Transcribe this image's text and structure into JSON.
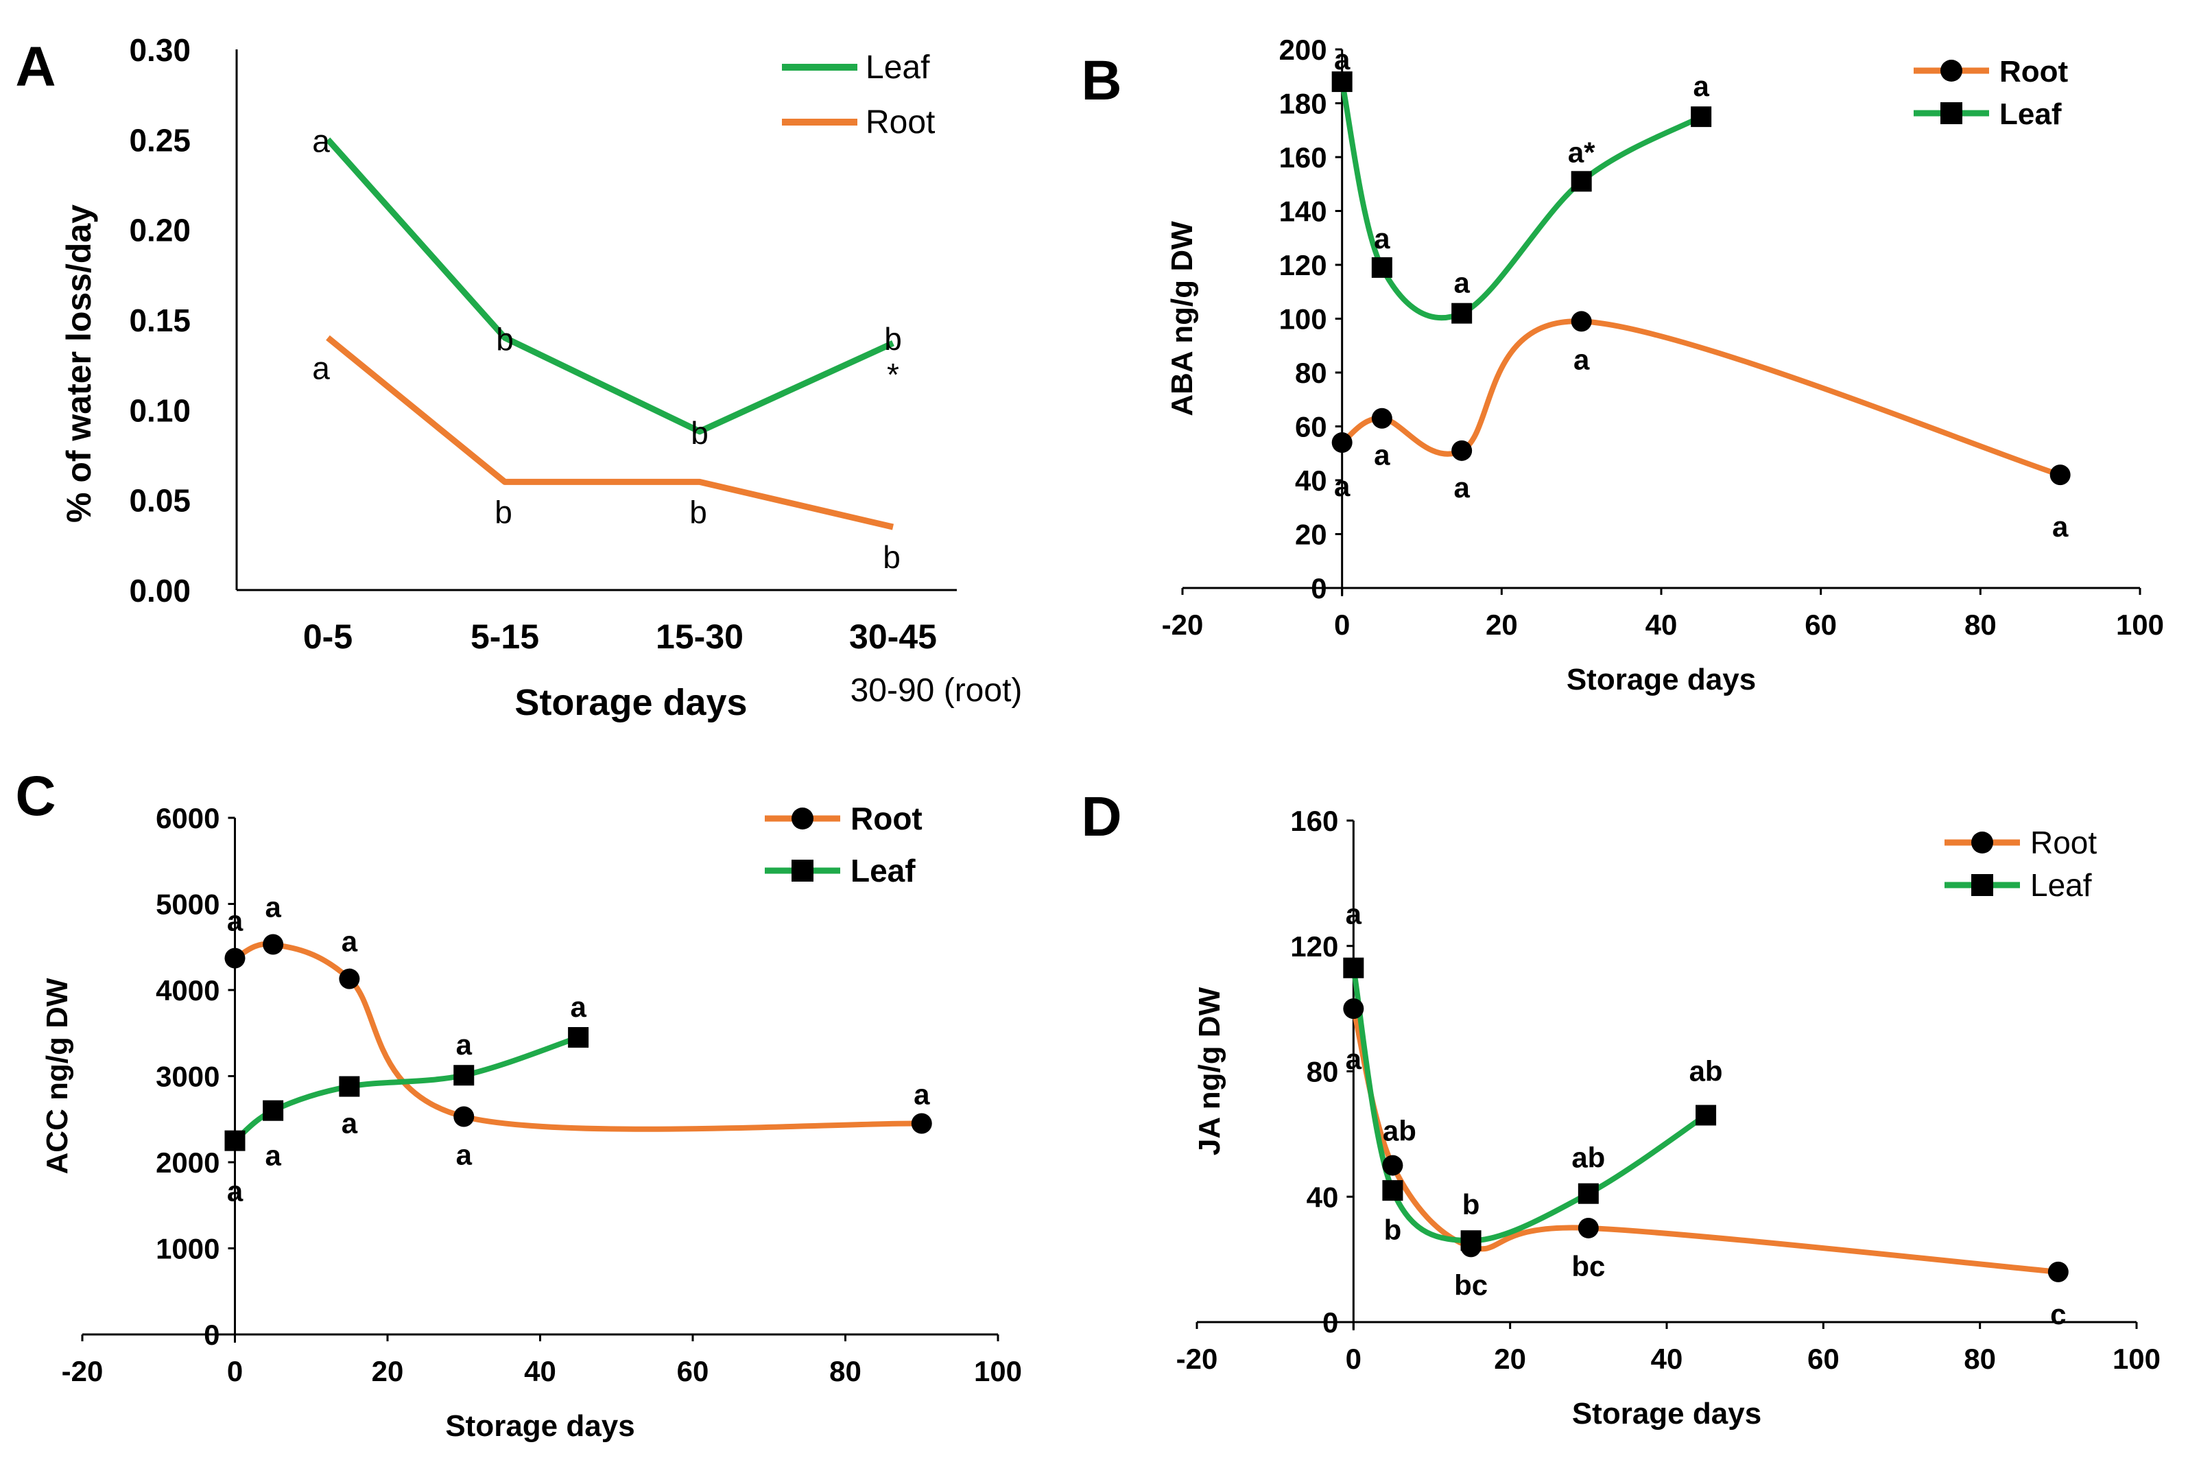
{
  "colors": {
    "root": "#ED7D31",
    "leaf": "#1FAA4A",
    "axis": "#000000",
    "text": "#000000"
  },
  "chart_data": [
    {
      "panel": "A",
      "type": "line",
      "categories": [
        "0-5",
        "5-15",
        "15-30",
        "30-45"
      ],
      "extra_xlabel": "30-90 (root)",
      "xlabel": "Storage days",
      "ylabel": "% of water loss/day",
      "ylim": [
        0,
        0.3
      ],
      "yticks": [
        "0.00",
        "0.05",
        "0.10",
        "0.15",
        "0.20",
        "0.25",
        "0.30"
      ],
      "legend": [
        "Leaf",
        "Root"
      ],
      "series": [
        {
          "name": "Leaf",
          "values": [
            0.25,
            0.14,
            0.088,
            0.137
          ],
          "letters": [
            "a",
            "b",
            "b",
            "b"
          ],
          "asterisk": "*"
        },
        {
          "name": "Root",
          "values": [
            0.14,
            0.06,
            0.06,
            0.035
          ],
          "letters": [
            "a",
            "b",
            "b",
            "b"
          ]
        }
      ]
    },
    {
      "panel": "B",
      "type": "scatter",
      "xlabel": "Storage days",
      "ylabel": "ABA ng/g DW",
      "xlim": [
        -20,
        100
      ],
      "ylim": [
        0,
        200
      ],
      "xticks": [
        "-20",
        "0",
        "20",
        "40",
        "60",
        "80",
        "100"
      ],
      "yticks": [
        "0",
        "20",
        "40",
        "60",
        "80",
        "100",
        "120",
        "140",
        "160",
        "180",
        "200"
      ],
      "legend": [
        "Root",
        "Leaf"
      ],
      "series": [
        {
          "name": "Root",
          "x": [
            0,
            5,
            15,
            30,
            90
          ],
          "y": [
            54,
            63,
            51,
            99,
            42
          ],
          "letters": [
            "a",
            "a",
            "a",
            "a",
            "a"
          ]
        },
        {
          "name": "Leaf",
          "x": [
            0,
            5,
            15,
            30,
            45
          ],
          "y": [
            188,
            119,
            102,
            151,
            175
          ],
          "letters": [
            "a",
            "a",
            "a",
            "a*",
            "a"
          ]
        }
      ]
    },
    {
      "panel": "C",
      "type": "scatter",
      "xlabel": "Storage days",
      "ylabel": "ACC ng/g DW",
      "xlim": [
        -20,
        100
      ],
      "ylim": [
        0,
        6000
      ],
      "xticks": [
        "-20",
        "0",
        "20",
        "40",
        "60",
        "80",
        "100"
      ],
      "yticks": [
        "0",
        "1000",
        "2000",
        "3000",
        "4000",
        "5000",
        "6000"
      ],
      "legend": [
        "Root",
        "Leaf"
      ],
      "series": [
        {
          "name": "Root",
          "x": [
            0,
            5,
            15,
            30,
            90
          ],
          "y": [
            4370,
            4530,
            4130,
            2530,
            2450
          ],
          "letters": [
            "a",
            "a",
            "a",
            "a",
            "a"
          ]
        },
        {
          "name": "Leaf",
          "x": [
            0,
            5,
            15,
            30,
            45
          ],
          "y": [
            2250,
            2600,
            2880,
            3010,
            3450
          ],
          "letters": [
            "a",
            "a",
            "a",
            "a",
            "a"
          ]
        }
      ]
    },
    {
      "panel": "D",
      "type": "scatter",
      "xlabel": "Storage days",
      "ylabel": "JA ng/g DW",
      "xlim": [
        -20,
        100
      ],
      "ylim": [
        0,
        160
      ],
      "xticks": [
        "-20",
        "0",
        "20",
        "40",
        "60",
        "80",
        "100"
      ],
      "yticks": [
        "0",
        "40",
        "80",
        "120",
        "160"
      ],
      "legend": [
        "Root",
        "Leaf"
      ],
      "series": [
        {
          "name": "Root",
          "x": [
            0,
            5,
            15,
            30,
            90
          ],
          "y": [
            100,
            50,
            24,
            30,
            16
          ],
          "letters": [
            "a",
            "ab",
            "bc",
            "bc",
            "c"
          ]
        },
        {
          "name": "Leaf",
          "x": [
            0,
            5,
            15,
            30,
            45
          ],
          "y": [
            113,
            42,
            26,
            41,
            66
          ],
          "letters": [
            "a",
            "b",
            "b",
            "ab",
            "ab"
          ]
        }
      ]
    }
  ]
}
